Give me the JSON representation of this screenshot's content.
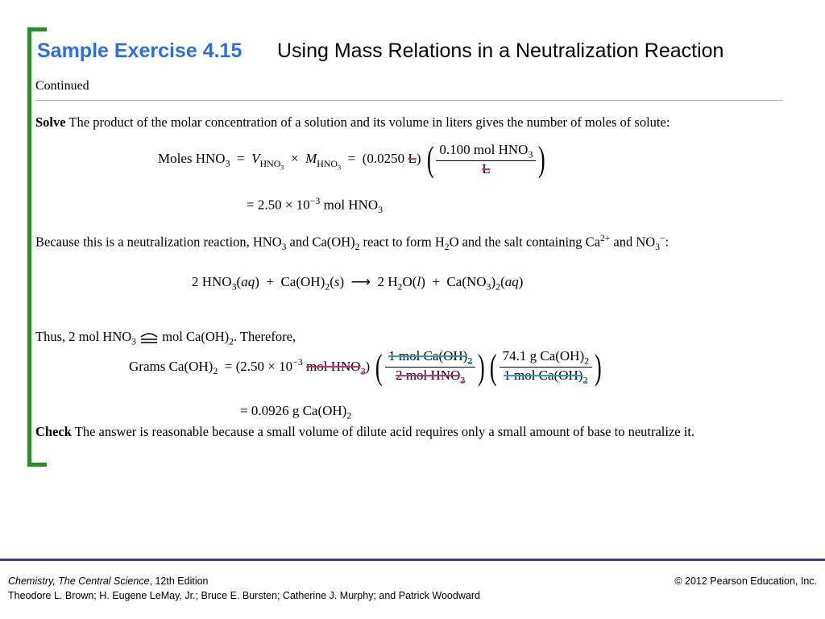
{
  "title": {
    "number": "Sample Exercise 4.15",
    "subtitle": "Using Mass Relations in a Neutralization Reaction"
  },
  "continued": "Continued",
  "solve": {
    "label": "Solve",
    "text": "The product of the molar concentration of a solution and its volume in liters gives the number of moles of solute:"
  },
  "eq1": {
    "lhs": "Moles HNO",
    "value": "(0.0250",
    "unit_cancelled": "L",
    "frac_num": "0.100 mol HNO",
    "frac_den": "L",
    "result": "= 2.50 × 10",
    "result_exp": "−3",
    "result_unit": "mol HNO"
  },
  "para2": {
    "text_a": "Because this is a neutralization reaction, HNO",
    "text_b": "and Ca(OH)",
    "text_c": "react to form H",
    "text_d": "O and the salt containing Ca",
    "text_d_sup": "2+",
    "text_e": "and NO",
    "text_e_sup": "−",
    "text_f": ":"
  },
  "reaction": "2 HNO3(aq) + Ca(OH)2(s) ⟶ 2 H2O(l) + Ca(NO3)2(aq)",
  "para3": {
    "text_a": "Thus, 2 mol HNO",
    "text_b": "mol Ca(OH)",
    "text_c": ". Therefore,"
  },
  "eq2": {
    "lhs": "Grams Ca(OH)",
    "value": "= (2.50 × 10",
    "value_exp": "−3",
    "cancel_unit": "mol HNO",
    "f1_num": "1 mol Ca(OH)",
    "f1_den": "2 mol HNO",
    "f2_num": "74.1 g Ca(OH)",
    "f2_den": "1 mol Ca(OH)",
    "result": "= 0.0926 g Ca(OH)"
  },
  "check": {
    "label": "Check",
    "text": "The answer is reasonable because a small volume of dilute acid requires only a small amount of base to neutralize it."
  },
  "footer": {
    "book": "Chemistry, The Central Science",
    "edition": ", 12th Edition",
    "authors": "Theodore L. Brown; H. Eugene LeMay, Jr.; Bruce E. Bursten; Catherine J. Murphy; and Patrick Woodward",
    "copyright": "© 2012 Pearson Education, Inc."
  },
  "colors": {
    "title_blue": "#2f6fd8",
    "bracket_green": "#2e8b2e",
    "cancel_pink": "#d02b7c",
    "cancel_blue": "#2a9bd1",
    "footer_rule": "#3a3a8a"
  }
}
